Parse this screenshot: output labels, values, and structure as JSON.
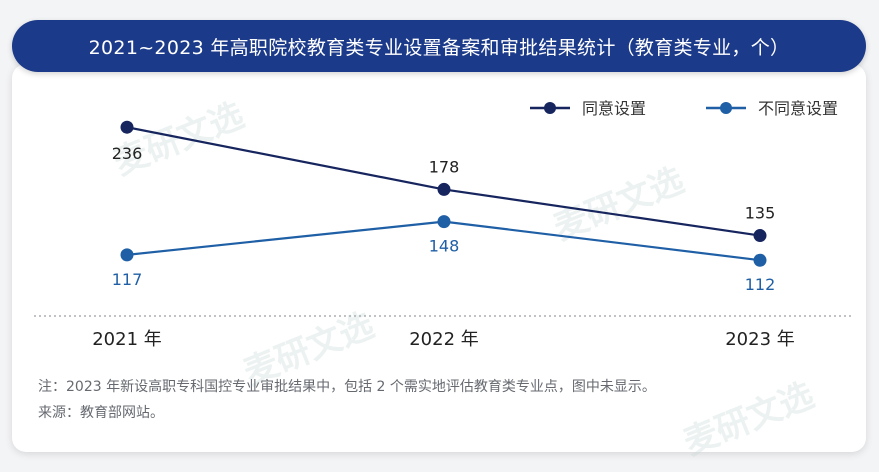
{
  "header": {
    "title": "2021~2023 年高职院校教育类专业设置备案和审批结果统计（教育类专业，个）"
  },
  "chart_data": {
    "type": "line",
    "categories": [
      "2021 年",
      "2022 年",
      "2023 年"
    ],
    "series": [
      {
        "name": "同意设置",
        "values": [
          236,
          178,
          135
        ],
        "color": "#16255e"
      },
      {
        "name": "不同意设置",
        "values": [
          117,
          148,
          112
        ],
        "color": "#1f5fa6"
      }
    ],
    "ylim": [
      60,
      280
    ],
    "grid": false,
    "legend_position": "top-right"
  },
  "notes": {
    "line1": "注：2023 年新设高职专科国控专业审批结果中，包括 2 个需实地评估教育类专业点，图中未显示。",
    "line2": "来源：教育部网站。"
  },
  "watermark": {
    "text": "麦研文选"
  },
  "colors": {
    "title_bar": "#1c3a8a",
    "series_agree": "#16255e",
    "series_disagree": "#1f5fa6"
  }
}
